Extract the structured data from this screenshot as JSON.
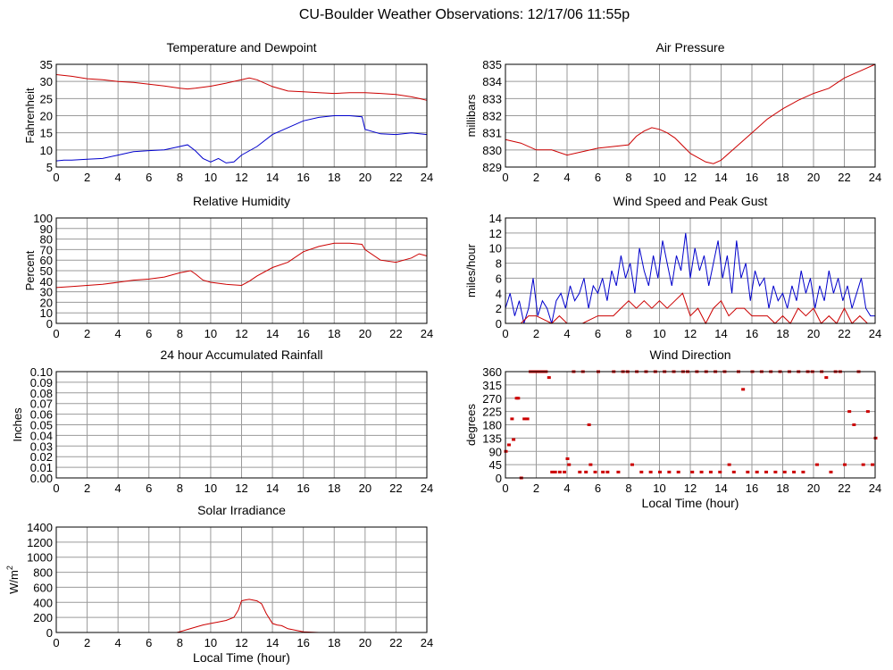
{
  "page": {
    "title": "CU-Boulder Weather Observations: 12/17/06 11:55p"
  },
  "colors": {
    "series1": "#cc0000",
    "series2": "#0000cc",
    "grid": "#9a9a9a",
    "axis": "#000000"
  },
  "chart_data": [
    {
      "id": "temp",
      "type": "line",
      "title": "Temperature and Dewpoint",
      "xlabel": "",
      "ylabel": "Fahrenheit",
      "xlim": [
        0,
        24
      ],
      "ylim": [
        5,
        35
      ],
      "xticks": [
        0,
        2,
        4,
        6,
        8,
        10,
        12,
        14,
        16,
        18,
        20,
        22,
        24
      ],
      "yticks": [
        5,
        10,
        15,
        20,
        25,
        30,
        35
      ],
      "grid": true,
      "series": [
        {
          "color": "#cc0000",
          "x": [
            0,
            1,
            2,
            3,
            4,
            5,
            6,
            7,
            8,
            8.5,
            9,
            10,
            11,
            12,
            12.5,
            13,
            14,
            15,
            16,
            17,
            18,
            19,
            20,
            21,
            22,
            23,
            23.5,
            24
          ],
          "y": [
            32,
            31.5,
            30.8,
            30.5,
            30,
            29.7,
            29.2,
            28.7,
            28,
            27.8,
            28,
            28.6,
            29.5,
            30.5,
            31,
            30.5,
            28.5,
            27.2,
            27,
            26.7,
            26.5,
            26.7,
            26.7,
            26.5,
            26.2,
            25.5,
            25,
            24.5
          ]
        },
        {
          "color": "#0000cc",
          "x": [
            0,
            0.5,
            1,
            2,
            3,
            4,
            5,
            6,
            7,
            8,
            8.5,
            9,
            9.5,
            10,
            10.5,
            11,
            11.5,
            12,
            13,
            14,
            15,
            16,
            17,
            18,
            19,
            19.8,
            20,
            21,
            22,
            23,
            24
          ],
          "y": [
            6.8,
            7,
            7,
            7.3,
            7.5,
            8.5,
            9.5,
            9.8,
            10,
            11,
            11.5,
            9.8,
            7.5,
            6.5,
            7.5,
            6.2,
            6.5,
            8.5,
            11,
            14.5,
            16.5,
            18.5,
            19.5,
            20,
            20,
            19.7,
            16,
            14.7,
            14.5,
            15,
            14.5
          ]
        }
      ]
    },
    {
      "id": "pressure",
      "type": "line",
      "title": "Air Pressure",
      "xlabel": "",
      "ylabel": "millibars",
      "xlim": [
        0,
        24
      ],
      "ylim": [
        829,
        835
      ],
      "xticks": [
        0,
        2,
        4,
        6,
        8,
        10,
        12,
        14,
        16,
        18,
        20,
        22,
        24
      ],
      "yticks": [
        829,
        830,
        831,
        832,
        833,
        834,
        835
      ],
      "grid": true,
      "series": [
        {
          "color": "#cc0000",
          "x": [
            0,
            1,
            2,
            3,
            4,
            5,
            6,
            7,
            8,
            8.5,
            9,
            9.5,
            10,
            10.5,
            11,
            12,
            13,
            13.5,
            14,
            15,
            16,
            17,
            18,
            19,
            20,
            21,
            22,
            23,
            24
          ],
          "y": [
            830.6,
            830.4,
            830,
            830,
            829.7,
            829.9,
            830.1,
            830.2,
            830.3,
            830.8,
            831.1,
            831.3,
            831.2,
            831,
            830.7,
            829.8,
            829.3,
            829.2,
            829.4,
            830.2,
            831,
            831.8,
            832.4,
            832.9,
            833.3,
            833.6,
            834.2,
            834.6,
            835
          ]
        }
      ]
    },
    {
      "id": "humidity",
      "type": "line",
      "title": "Relative Humidity",
      "xlabel": "",
      "ylabel": "Percent",
      "xlim": [
        0,
        24
      ],
      "ylim": [
        0,
        100
      ],
      "xticks": [
        0,
        2,
        4,
        6,
        8,
        10,
        12,
        14,
        16,
        18,
        20,
        22,
        24
      ],
      "yticks": [
        0,
        10,
        20,
        30,
        40,
        50,
        60,
        70,
        80,
        90,
        100
      ],
      "grid": true,
      "series": [
        {
          "color": "#cc0000",
          "x": [
            0,
            1,
            2,
            3,
            4,
            5,
            6,
            7,
            8,
            8.7,
            9,
            9.5,
            10,
            11,
            12,
            12.5,
            13,
            14,
            15,
            16,
            17,
            18,
            19,
            19.8,
            20,
            21,
            22,
            23,
            23.5,
            24
          ],
          "y": [
            34,
            35,
            36,
            37,
            39,
            41,
            42,
            44,
            48,
            50,
            47,
            41,
            39,
            37,
            36,
            40,
            45,
            53,
            58,
            68,
            73,
            76,
            76,
            75,
            70,
            60,
            58,
            62,
            66,
            64
          ]
        }
      ]
    },
    {
      "id": "wind",
      "type": "line",
      "title": "Wind Speed and Peak Gust",
      "xlabel": "",
      "ylabel": "miles/hour",
      "xlim": [
        0,
        24
      ],
      "ylim": [
        0,
        14
      ],
      "xticks": [
        0,
        2,
        4,
        6,
        8,
        10,
        12,
        14,
        16,
        18,
        20,
        22,
        24
      ],
      "yticks": [
        0,
        2,
        4,
        6,
        8,
        10,
        12,
        14
      ],
      "grid": true,
      "series": [
        {
          "color": "#0000cc",
          "x": [
            0,
            0.3,
            0.6,
            0.9,
            1.2,
            1.5,
            1.8,
            2.1,
            2.4,
            2.7,
            3,
            3.3,
            3.6,
            3.9,
            4.2,
            4.5,
            4.8,
            5.1,
            5.4,
            5.7,
            6,
            6.3,
            6.6,
            6.9,
            7.2,
            7.5,
            7.8,
            8.1,
            8.4,
            8.7,
            9,
            9.3,
            9.6,
            9.9,
            10.2,
            10.5,
            10.8,
            11.1,
            11.4,
            11.7,
            12,
            12.3,
            12.6,
            12.9,
            13.2,
            13.5,
            13.8,
            14.1,
            14.4,
            14.7,
            15,
            15.3,
            15.6,
            15.9,
            16.2,
            16.5,
            16.8,
            17.1,
            17.4,
            17.7,
            18,
            18.3,
            18.6,
            18.9,
            19.2,
            19.5,
            19.8,
            20.1,
            20.4,
            20.7,
            21,
            21.3,
            21.6,
            21.9,
            22.2,
            22.5,
            22.8,
            23.1,
            23.4,
            23.7,
            24
          ],
          "y": [
            2,
            4,
            1,
            3,
            0,
            2,
            6,
            1,
            3,
            2,
            0,
            3,
            4,
            2,
            5,
            3,
            4,
            6,
            2,
            5,
            4,
            6,
            3,
            7,
            5,
            9,
            6,
            8,
            4,
            10,
            7,
            5,
            9,
            6,
            11,
            8,
            5,
            9,
            7,
            12,
            6,
            10,
            7,
            9,
            5,
            8,
            11,
            6,
            9,
            4,
            11,
            6,
            8,
            3,
            7,
            5,
            6,
            2,
            5,
            3,
            4,
            2,
            5,
            3,
            7,
            4,
            6,
            2,
            5,
            3,
            7,
            4,
            6,
            3,
            5,
            2,
            4,
            6,
            2,
            1,
            1
          ]
        },
        {
          "color": "#cc0000",
          "x": [
            0,
            1,
            1.5,
            2,
            3,
            3.5,
            4,
            5,
            6,
            7,
            7.5,
            8,
            8.5,
            9,
            9.5,
            10,
            10.5,
            11,
            11.5,
            12,
            12.5,
            13,
            13.5,
            14,
            14.5,
            15,
            15.5,
            16,
            17,
            17.5,
            18,
            18.5,
            19,
            19.5,
            20,
            20.5,
            21,
            21.5,
            22,
            22.5,
            23,
            23.5,
            24
          ],
          "y": [
            0,
            0,
            1,
            1,
            0,
            1,
            0,
            0,
            1,
            1,
            2,
            3,
            2,
            3,
            2,
            3,
            2,
            3,
            4,
            1,
            2,
            0,
            2,
            3,
            1,
            2,
            2,
            1,
            1,
            0,
            1,
            0,
            2,
            1,
            2,
            0,
            1,
            0,
            2,
            0,
            1,
            0,
            0
          ]
        }
      ]
    },
    {
      "id": "rain",
      "type": "line",
      "title": "24 hour Accumulated Rainfall",
      "xlabel": "",
      "ylabel": "Inches",
      "xlim": [
        0,
        24
      ],
      "ylim": [
        0,
        0.1
      ],
      "xticks": [
        0,
        2,
        4,
        6,
        8,
        10,
        12,
        14,
        16,
        18,
        20,
        22,
        24
      ],
      "yticks": [
        0,
        0.01,
        0.02,
        0.03,
        0.04,
        0.05,
        0.06,
        0.07,
        0.08,
        0.09,
        0.1
      ],
      "yticklabels": [
        "0.00",
        "0.01",
        "0.02",
        "0.03",
        "0.04",
        "0.05",
        "0.06",
        "0.07",
        "0.08",
        "0.09",
        "0.10"
      ],
      "grid": true,
      "series": [
        {
          "color": "#cc0000",
          "x": [
            0,
            24
          ],
          "y": [
            0,
            0
          ]
        }
      ]
    },
    {
      "id": "direction",
      "type": "scatter",
      "title": "Wind Direction",
      "xlabel": "Local Time (hour)",
      "ylabel": "degrees",
      "xlim": [
        0,
        24
      ],
      "ylim": [
        0,
        360
      ],
      "xticks": [
        0,
        2,
        4,
        6,
        8,
        10,
        12,
        14,
        16,
        18,
        20,
        22,
        24
      ],
      "yticks": [
        0,
        45,
        90,
        135,
        180,
        225,
        270,
        315,
        360
      ],
      "grid": true,
      "series": [
        {
          "color": "#cc0000",
          "x": [
            0,
            0.2,
            0.4,
            0.5,
            0.7,
            0.8,
            1,
            1.2,
            1.4,
            1.6,
            1.8,
            2,
            2.2,
            2.4,
            2.6,
            2.8,
            3,
            3.2,
            3.5,
            3.8,
            4,
            4.1,
            4.4,
            4.8,
            5,
            5.2,
            5.4,
            5.5,
            5.8,
            6,
            6.3,
            6.6,
            7,
            7.3,
            7.6,
            7.9,
            8.2,
            8.5,
            8.8,
            9.1,
            9.4,
            9.7,
            10,
            10.3,
            10.6,
            10.9,
            11.2,
            11.5,
            11.8,
            12.1,
            12.4,
            12.7,
            13,
            13.3,
            13.6,
            13.9,
            14.2,
            14.5,
            14.8,
            15.1,
            15.4,
            15.7,
            16,
            16.3,
            16.6,
            16.9,
            17.2,
            17.5,
            17.8,
            18.1,
            18.4,
            18.7,
            19,
            19.3,
            19.6,
            19.9,
            20.2,
            20.5,
            20.8,
            21.1,
            21.4,
            21.7,
            22,
            22.3,
            22.6,
            22.9,
            23.2,
            23.5,
            23.8,
            24
          ],
          "y": [
            90,
            112,
            200,
            130,
            270,
            270,
            0,
            200,
            200,
            360,
            360,
            360,
            360,
            360,
            360,
            340,
            20,
            20,
            20,
            20,
            65,
            45,
            360,
            20,
            360,
            20,
            180,
            45,
            20,
            360,
            20,
            20,
            360,
            20,
            360,
            360,
            45,
            360,
            20,
            360,
            20,
            360,
            20,
            360,
            20,
            360,
            20,
            360,
            360,
            20,
            360,
            20,
            360,
            20,
            360,
            20,
            360,
            45,
            20,
            360,
            300,
            20,
            360,
            20,
            360,
            20,
            360,
            20,
            360,
            20,
            360,
            20,
            360,
            20,
            360,
            360,
            45,
            360,
            340,
            20,
            360,
            360,
            45,
            225,
            180,
            360,
            45,
            225,
            45,
            135
          ]
        }
      ]
    },
    {
      "id": "solar",
      "type": "line",
      "title": "Solar Irradiance",
      "xlabel": "Local Time (hour)",
      "ylabel": "W/m",
      "ylabel_sup": "2",
      "xlim": [
        0,
        24
      ],
      "ylim": [
        0,
        1400
      ],
      "xticks": [
        0,
        2,
        4,
        6,
        8,
        10,
        12,
        14,
        16,
        18,
        20,
        22,
        24
      ],
      "yticks": [
        0,
        200,
        400,
        600,
        800,
        1000,
        1200,
        1400
      ],
      "grid": true,
      "series": [
        {
          "color": "#cc0000",
          "x": [
            0,
            7.8,
            8,
            8.5,
            9,
            9.5,
            10,
            10.5,
            11,
            11.5,
            11.8,
            12,
            12.2,
            12.5,
            13,
            13.3,
            13.6,
            14,
            14.3,
            14.6,
            15,
            15.5,
            16,
            16.5,
            17,
            24
          ],
          "y": [
            0,
            0,
            10,
            40,
            70,
            100,
            120,
            140,
            160,
            200,
            300,
            420,
            430,
            440,
            420,
            380,
            250,
            120,
            100,
            90,
            50,
            30,
            10,
            5,
            0,
            0
          ]
        }
      ]
    }
  ]
}
